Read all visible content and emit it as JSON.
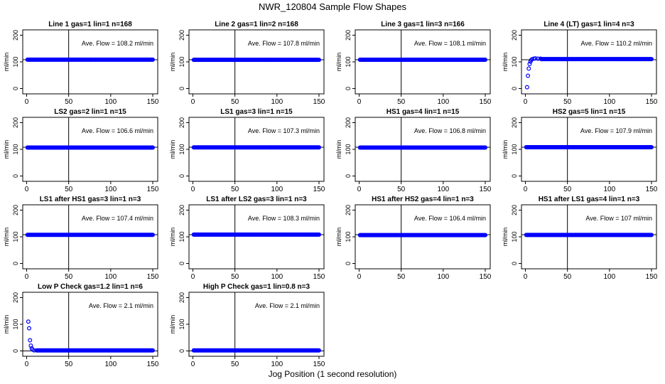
{
  "title": "NWR_120804  Sample Flow Shapes",
  "xlabel": "Jog Position (1 second resolution)",
  "colors": {
    "points": "#0000ff",
    "axis": "#000000"
  },
  "chart_data": [
    {
      "type": "scatter",
      "title": "Line 1 gas=1 lin=1 n=168",
      "ylabel": "ml/min",
      "annotation": "Ave. Flow = 108.2  ml/min",
      "xlim": [
        0,
        150
      ],
      "ylim": [
        -20,
        220
      ],
      "yticks": [
        0,
        100,
        200
      ],
      "xticks": [
        0,
        50,
        100,
        150
      ],
      "hline": 108,
      "vline": 50,
      "profile": "flat",
      "level": 108.2
    },
    {
      "type": "scatter",
      "title": "Line 2 gas=1 lin=2 n=168",
      "ylabel": "ml/min",
      "annotation": "Ave. Flow = 107.8  ml/min",
      "xlim": [
        0,
        150
      ],
      "ylim": [
        -20,
        220
      ],
      "yticks": [
        0,
        100,
        200
      ],
      "xticks": [
        0,
        50,
        100,
        150
      ],
      "hline": 108,
      "vline": 50,
      "profile": "flat",
      "level": 107.8
    },
    {
      "type": "scatter",
      "title": "Line 3 gas=1 lin=3 n=166",
      "ylabel": "ml/min",
      "annotation": "Ave. Flow = 108.1  ml/min",
      "xlim": [
        0,
        150
      ],
      "ylim": [
        -20,
        220
      ],
      "yticks": [
        0,
        100,
        200
      ],
      "xticks": [
        0,
        50,
        100,
        150
      ],
      "hline": 108,
      "vline": 50,
      "profile": "flat",
      "level": 108.1
    },
    {
      "type": "scatter",
      "title": "Line 4 (LT) gas=1 lin=4 n=3",
      "ylabel": "ml/min",
      "annotation": "Ave. Flow = 110.2  ml/min",
      "xlim": [
        0,
        150
      ],
      "ylim": [
        -20,
        220
      ],
      "yticks": [
        0,
        100,
        200
      ],
      "xticks": [
        0,
        50,
        100,
        150
      ],
      "hline": 108,
      "vline": 50,
      "profile": "rise",
      "level": 110.2,
      "initial_points": [
        [
          2,
          5
        ],
        [
          3,
          48
        ],
        [
          4,
          75
        ],
        [
          5,
          92
        ],
        [
          6,
          101
        ],
        [
          7,
          107
        ],
        [
          8,
          110
        ],
        [
          10,
          112
        ],
        [
          12,
          113
        ],
        [
          15,
          112
        ],
        [
          18,
          112
        ]
      ]
    },
    {
      "type": "scatter",
      "title": "LS2 gas=2 lin=1 n=15",
      "ylabel": "ml/min",
      "annotation": "Ave. Flow = 106.6  ml/min",
      "xlim": [
        0,
        150
      ],
      "ylim": [
        -20,
        220
      ],
      "yticks": [
        0,
        100,
        200
      ],
      "xticks": [
        0,
        50,
        100,
        150
      ],
      "hline": 108,
      "vline": 50,
      "profile": "flat",
      "level": 106.6
    },
    {
      "type": "scatter",
      "title": "LS1 gas=3 lin=1 n=15",
      "ylabel": "ml/min",
      "annotation": "Ave. Flow = 107.3  ml/min",
      "xlim": [
        0,
        150
      ],
      "ylim": [
        -20,
        220
      ],
      "yticks": [
        0,
        100,
        200
      ],
      "xticks": [
        0,
        50,
        100,
        150
      ],
      "hline": 108,
      "vline": 50,
      "profile": "flat",
      "level": 107.3
    },
    {
      "type": "scatter",
      "title": "HS1 gas=4 lin=1 n=15",
      "ylabel": "ml/min",
      "annotation": "Ave. Flow = 106.8  ml/min",
      "xlim": [
        0,
        150
      ],
      "ylim": [
        -20,
        220
      ],
      "yticks": [
        0,
        100,
        200
      ],
      "xticks": [
        0,
        50,
        100,
        150
      ],
      "hline": 108,
      "vline": 50,
      "profile": "flat",
      "level": 106.8
    },
    {
      "type": "scatter",
      "title": "HS2 gas=5 lin=1 n=15",
      "ylabel": "ml/min",
      "annotation": "Ave. Flow = 107.9  ml/min",
      "xlim": [
        0,
        150
      ],
      "ylim": [
        -20,
        220
      ],
      "yticks": [
        0,
        100,
        200
      ],
      "xticks": [
        0,
        50,
        100,
        150
      ],
      "hline": 108,
      "vline": 50,
      "profile": "flat",
      "level": 107.9
    },
    {
      "type": "scatter",
      "title": "LS1 after HS1 gas=3 lin=1 n=3",
      "ylabel": "ml/min",
      "annotation": "Ave. Flow = 107.4  ml/min",
      "xlim": [
        0,
        150
      ],
      "ylim": [
        -20,
        220
      ],
      "yticks": [
        0,
        100,
        200
      ],
      "xticks": [
        0,
        50,
        100,
        150
      ],
      "hline": 108,
      "vline": 50,
      "profile": "flat",
      "level": 107.4
    },
    {
      "type": "scatter",
      "title": "LS1 after LS2 gas=3 lin=1 n=3",
      "ylabel": "ml/min",
      "annotation": "Ave. Flow = 108.3  ml/min",
      "xlim": [
        0,
        150
      ],
      "ylim": [
        -20,
        220
      ],
      "yticks": [
        0,
        100,
        200
      ],
      "xticks": [
        0,
        50,
        100,
        150
      ],
      "hline": 108,
      "vline": 50,
      "profile": "flat",
      "level": 108.3
    },
    {
      "type": "scatter",
      "title": "HS1 after HS2 gas=4 lin=1 n=3",
      "ylabel": "ml/min",
      "annotation": "Ave. Flow = 106.4  ml/min",
      "xlim": [
        0,
        150
      ],
      "ylim": [
        -20,
        220
      ],
      "yticks": [
        0,
        100,
        200
      ],
      "xticks": [
        0,
        50,
        100,
        150
      ],
      "hline": 108,
      "vline": 50,
      "profile": "flat",
      "level": 106.4
    },
    {
      "type": "scatter",
      "title": "HS1 after LS1 gas=4 lin=1 n=3",
      "ylabel": "ml/min",
      "annotation": "Ave. Flow = 107  ml/min",
      "xlim": [
        0,
        150
      ],
      "ylim": [
        -20,
        220
      ],
      "yticks": [
        0,
        100,
        200
      ],
      "xticks": [
        0,
        50,
        100,
        150
      ],
      "hline": 108,
      "vline": 50,
      "profile": "flat",
      "level": 107
    },
    {
      "type": "scatter",
      "title": "Low P Check gas=1.2 lin=1 n=6",
      "ylabel": "ml/min",
      "annotation": "Ave. Flow = 2.1  ml/min",
      "xlim": [
        0,
        150
      ],
      "ylim": [
        -20,
        220
      ],
      "yticks": [
        0,
        100,
        200
      ],
      "xticks": [
        0,
        50,
        100,
        150
      ],
      "hline": 0,
      "vline": 50,
      "profile": "decay",
      "level": 2.1,
      "initial_points": [
        [
          2,
          110
        ],
        [
          3,
          85
        ],
        [
          4,
          40
        ],
        [
          5,
          20
        ],
        [
          6,
          10
        ],
        [
          7,
          5
        ],
        [
          9,
          2
        ],
        [
          12,
          2
        ]
      ]
    },
    {
      "type": "scatter",
      "title": "High P Check gas=1 lin=0.8 n=3",
      "ylabel": "ml/min",
      "annotation": "Ave. Flow = 2.1  ml/min",
      "xlim": [
        0,
        150
      ],
      "ylim": [
        -20,
        220
      ],
      "yticks": [
        0,
        100,
        200
      ],
      "xticks": [
        0,
        50,
        100,
        150
      ],
      "hline": 0,
      "vline": 50,
      "profile": "flat",
      "level": 2.1
    }
  ]
}
